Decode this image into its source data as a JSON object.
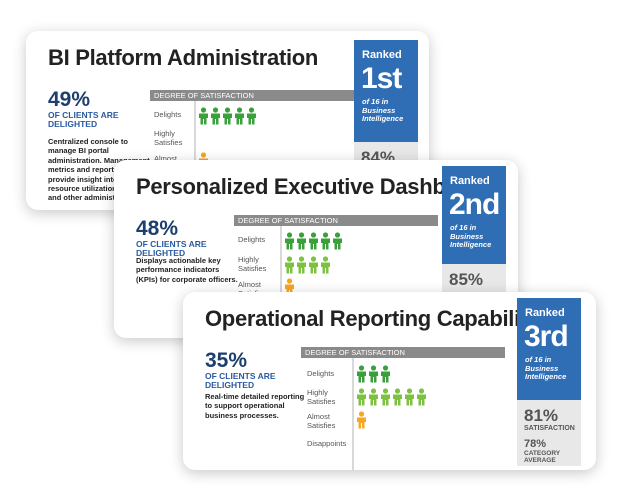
{
  "colors": {
    "delights": "#3aa13a",
    "highly": "#7dc142",
    "almost": "#f5a623",
    "rank_blue": "#2f6db5",
    "header_gray": "#8a8a8a"
  },
  "icons": {
    "figure": "person-icon"
  },
  "cards": [
    {
      "title": "BI Platform Administration",
      "pct": "49%",
      "pct_label": "OF CLIENTS ARE DELIGHTED",
      "desc": "Centralized console to manage BI portal administration. Management metrics and reports to provide insight into usage, resource utilization, security, and other administrative",
      "sat_header": "DEGREE OF SATISFACTION",
      "rows": [
        {
          "label": "Delights",
          "count": 5
        },
        {
          "label": "Highly Satisfies",
          "count": 0
        },
        {
          "label": "Almost Satisfies",
          "count": 1
        }
      ],
      "rank_word": "Ranked",
      "rank_num": "1st",
      "rank_sub": "of 16 in Business Intelligence",
      "stat_pct": "84%"
    },
    {
      "title": "Personalized Executive Dashboards",
      "pct": "48%",
      "pct_label": "OF CLIENTS ARE DELIGHTED",
      "desc": "Displays actionable key performance indicators (KPIs) for corporate officers.",
      "sat_header": "DEGREE OF SATISFACTION",
      "rows": [
        {
          "label": "Delights",
          "count": 5
        },
        {
          "label": "Highly Satisfies",
          "count": 4
        },
        {
          "label": "Almost Satisfies",
          "count": 1
        }
      ],
      "rank_word": "Ranked",
      "rank_num": "2nd",
      "rank_sub": "of 16 in Business Intelligence",
      "stat_pct": "85%"
    },
    {
      "title": "Operational Reporting Capabilities",
      "pct": "35%",
      "pct_label": "OF CLIENTS ARE DELIGHTED",
      "desc": "Real-time detailed reporting to support operational business processes.",
      "sat_header": "DEGREE OF SATISFACTION",
      "rows": [
        {
          "label": "Delights",
          "count": 3
        },
        {
          "label": "Highly Satisfies",
          "count": 6
        },
        {
          "label": "Almost Satisfies",
          "count": 1
        },
        {
          "label": "Disappoints",
          "count": 0
        }
      ],
      "rank_word": "Ranked",
      "rank_num": "3rd",
      "rank_sub": "of 16 in Business Intelligence",
      "stat_pct": "81%",
      "stat_label": "SATISFACTION",
      "stat_pct2": "78%",
      "stat_label2": "CATEGORY AVERAGE"
    }
  ]
}
